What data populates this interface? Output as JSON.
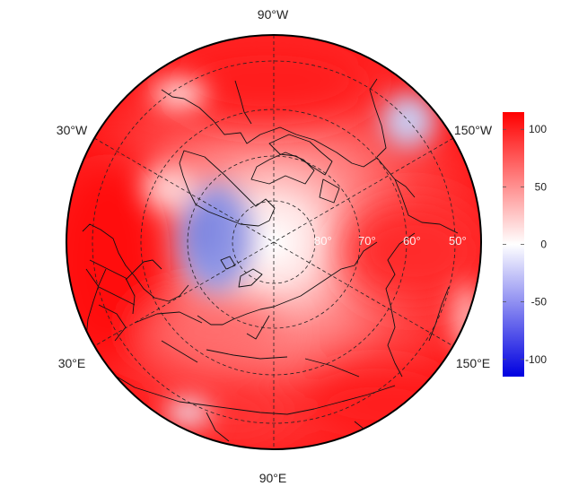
{
  "map": {
    "projection": "north-polar-stereographic",
    "longitude_labels": {
      "top": "90°W",
      "left_upper": "30°W",
      "right_upper": "150°W",
      "left_lower": "30°E",
      "right_lower": "150°E",
      "bottom": "90°E"
    },
    "latitude_labels": [
      "80°",
      "70°",
      "60°",
      "50°"
    ],
    "graticule_style": "dashed",
    "colorbar": {
      "ticks": [
        "100",
        "50",
        "0",
        "-50",
        "-100"
      ],
      "tick_values": [
        100,
        50,
        0,
        -50,
        -100
      ],
      "range": [
        -115,
        115
      ],
      "colors": {
        "high": "#ff0000",
        "mid": "#ffffff",
        "low": "#0000e0"
      }
    },
    "field_colors": {
      "warm": "#ff2a2a",
      "neutral": "#ffffff",
      "cool": "#9aa0e8"
    }
  }
}
